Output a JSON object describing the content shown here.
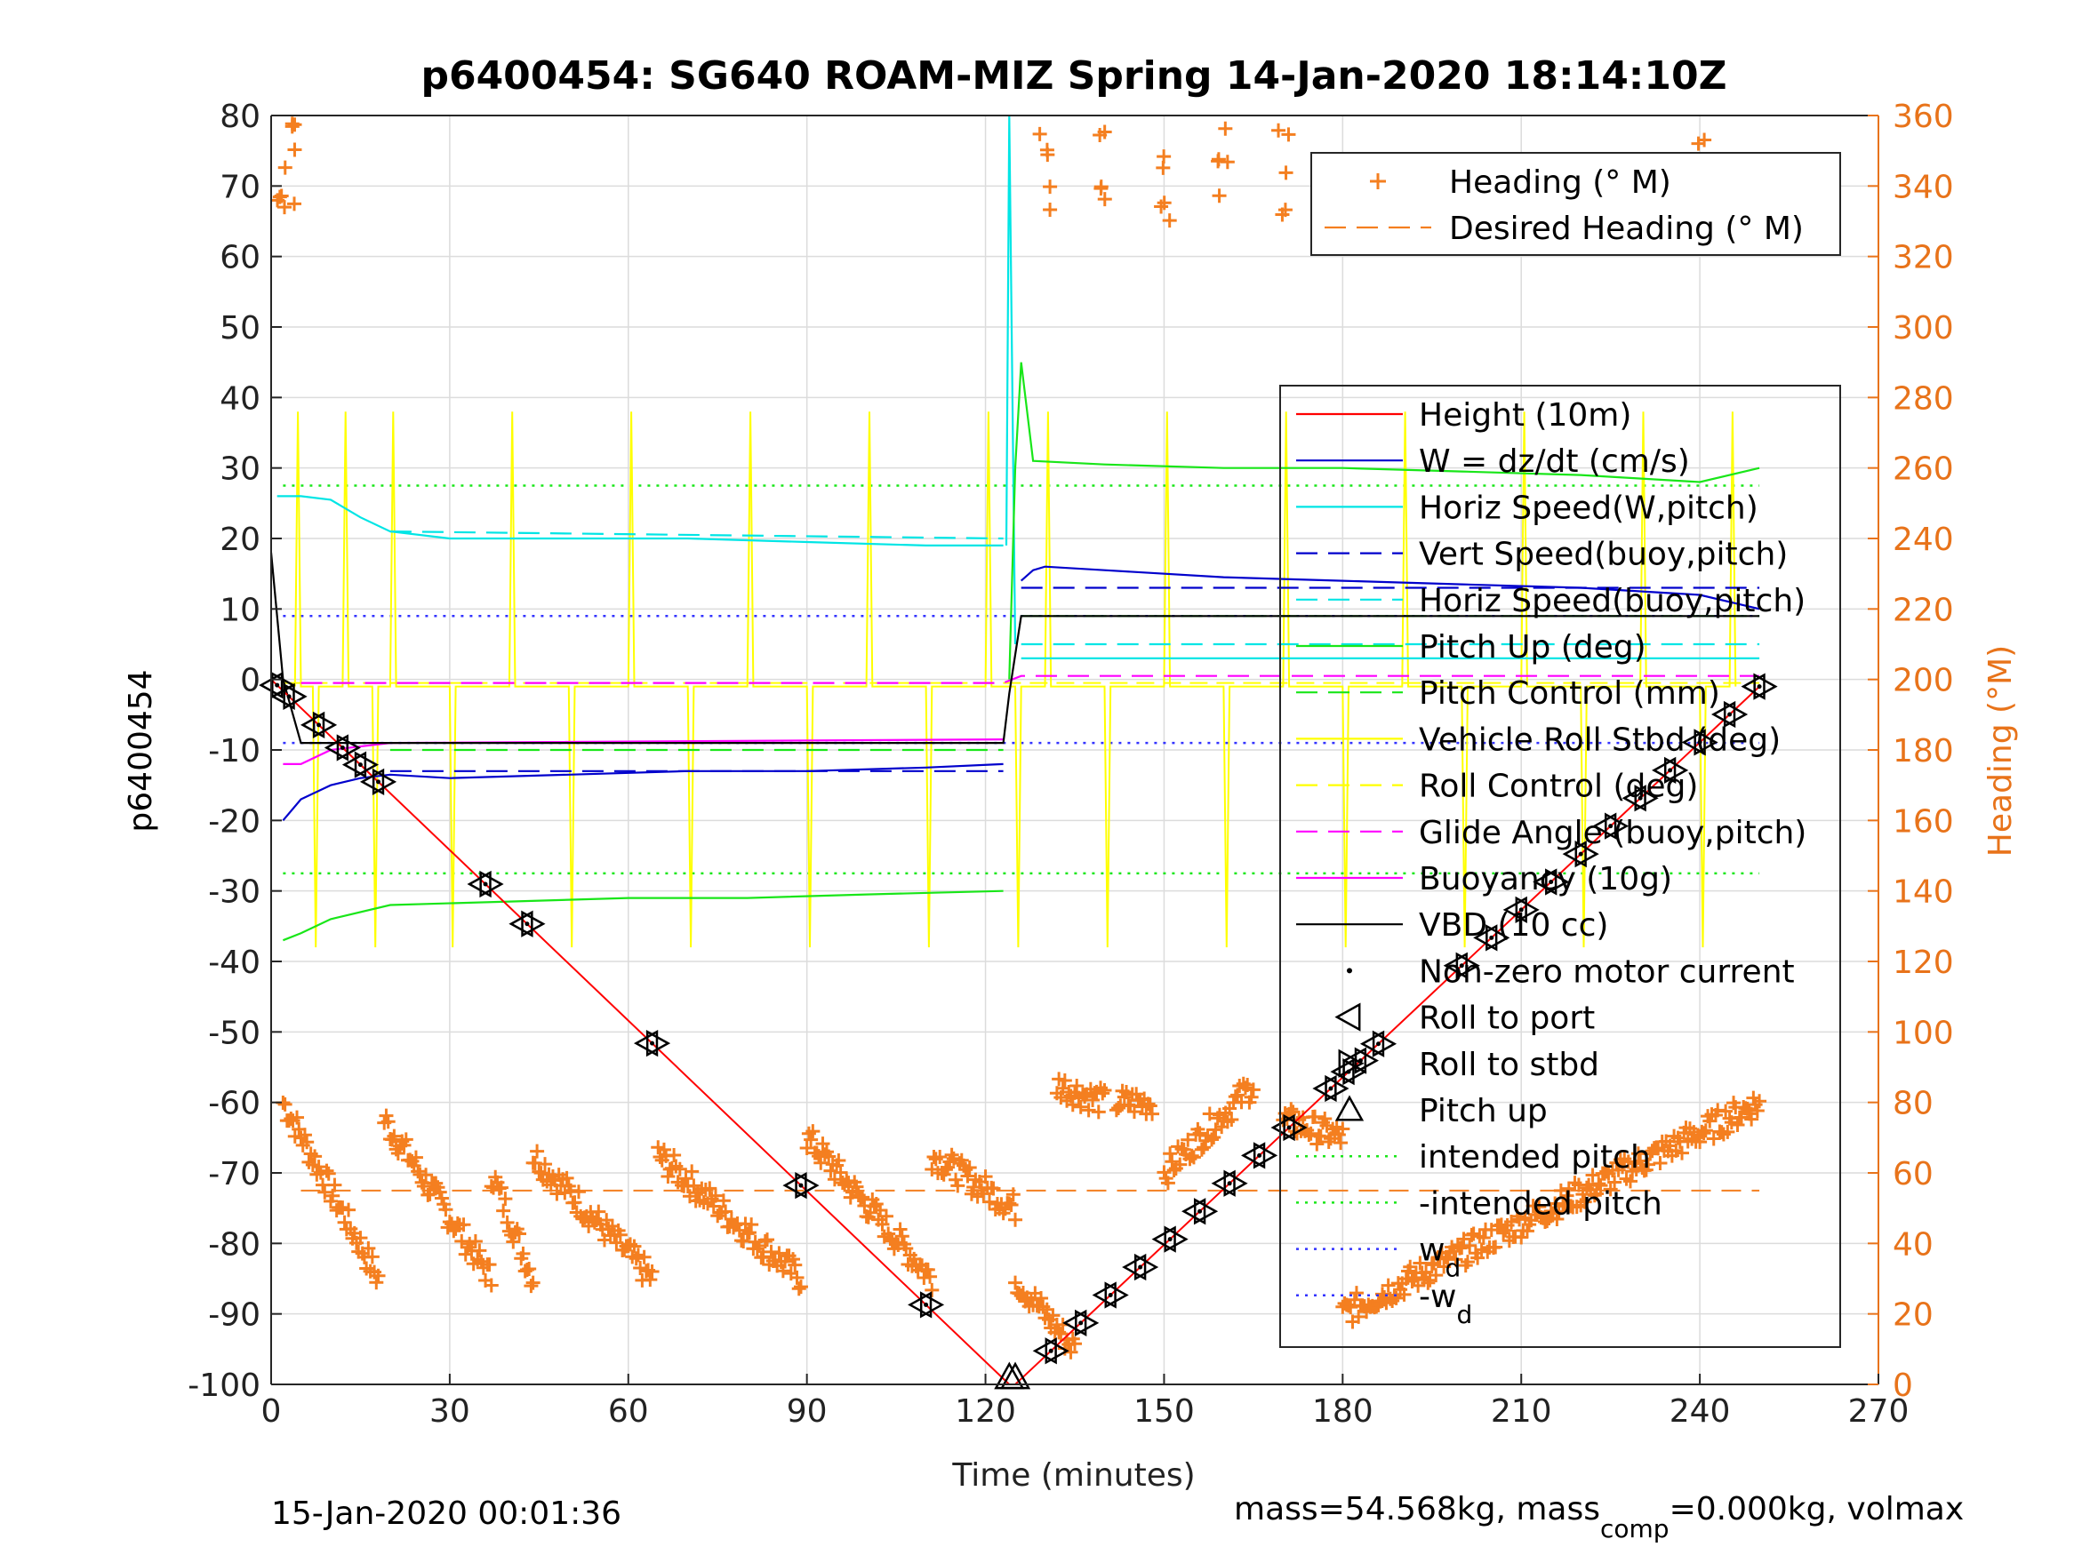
{
  "chart_data": {
    "type": "line",
    "title": "p6400454: SG640 ROAM-MIZ Spring 14-Jan-2020 18:14:10Z",
    "xlabel": "Time (minutes)",
    "ylabel_left": "p6400454",
    "ylabel_right": "Heading (°M)",
    "xlim": [
      0,
      270
    ],
    "ylim_left": [
      -100,
      80
    ],
    "ylim_right": [
      0,
      360
    ],
    "x_ticks": [
      "0",
      "30",
      "60",
      "90",
      "120",
      "150",
      "180",
      "210",
      "240",
      "270"
    ],
    "y_ticks_left": [
      "80",
      "70",
      "60",
      "50",
      "40",
      "30",
      "20",
      "10",
      "0",
      "-10",
      "-20",
      "-30",
      "-40",
      "-50",
      "-60",
      "-70",
      "-80",
      "-90",
      "-100"
    ],
    "y_ticks_right": [
      "360",
      "340",
      "320",
      "300",
      "280",
      "260",
      "240",
      "220",
      "200",
      "180",
      "160",
      "140",
      "120",
      "100",
      "80",
      "60",
      "40",
      "20",
      "0"
    ],
    "footer_left": "15-Jan-2020 00:01:36",
    "footer_right": {
      "prefix": "mass=54.568kg, mass",
      "sub": "comp",
      "suffix": "=0.000kg, volmax"
    },
    "colors": {
      "heading": "#f47f20",
      "height": "#ff0000",
      "w": "#0000cc",
      "horiz": "#00e5e5",
      "pitch": "#19e619",
      "roll": "#ffff00",
      "glide": "#ff00ff",
      "vbd": "#000000",
      "wd": "#3333ff",
      "axis_right": "#e8731a"
    },
    "legend_heading": [
      {
        "label": "Heading (° M)",
        "style": "plus",
        "color": "#f47f20"
      },
      {
        "label": "Desired Heading (° M)",
        "style": "dash",
        "color": "#f47f20"
      }
    ],
    "legend_main": [
      {
        "label": "Height (10m)",
        "style": "line",
        "color": "#ff0000"
      },
      {
        "label": "W = dz/dt (cm/s)",
        "style": "line",
        "color": "#0000cc"
      },
      {
        "label": "Horiz Speed(W,pitch)",
        "style": "line",
        "color": "#00e5e5"
      },
      {
        "label": "Vert Speed(buoy,pitch)",
        "style": "dash",
        "color": "#0000cc"
      },
      {
        "label": "Horiz Speed(buoy,pitch)",
        "style": "dash",
        "color": "#00e5e5"
      },
      {
        "label": "Pitch Up (deg)",
        "style": "line",
        "color": "#19e619"
      },
      {
        "label": "Pitch Control (mm)",
        "style": "dash",
        "color": "#19e619"
      },
      {
        "label": "Vehicle Roll Stbd (deg)",
        "style": "line",
        "color": "#ffff00"
      },
      {
        "label": "Roll Control (deg)",
        "style": "dash",
        "color": "#ffff00"
      },
      {
        "label": "Glide Angle (buoy,pitch)",
        "style": "dash",
        "color": "#ff00ff"
      },
      {
        "label": "Buoyancy (10g)",
        "style": "line",
        "color": "#ff00ff"
      },
      {
        "label": "VBD (10 cc)",
        "style": "line",
        "color": "#000000"
      },
      {
        "label": "Non-zero motor current",
        "style": "dot",
        "color": "#000000"
      },
      {
        "label": "Roll to port",
        "style": "tri-left",
        "color": "#000000"
      },
      {
        "label": "Roll to stbd",
        "style": "tri-right",
        "color": "#000000"
      },
      {
        "label": "Pitch up",
        "style": "tri-up",
        "color": "#000000"
      },
      {
        "label": "intended pitch",
        "style": "dotted",
        "color": "#19e619"
      },
      {
        "label": "-intended pitch",
        "style": "dotted",
        "color": "#19e619"
      },
      {
        "label": "w",
        "sub": "d",
        "style": "dotted",
        "color": "#3333ff"
      },
      {
        "label": "-w",
        "sub": "d",
        "style": "dotted",
        "color": "#3333ff"
      }
    ],
    "series": {
      "height": {
        "x": [
          0,
          124,
          125,
          250
        ],
        "y": [
          0,
          -100,
          -100,
          -1
        ]
      },
      "w": {
        "segments": [
          {
            "x": [
              2,
              5,
              10,
              15,
              20,
              30,
              50,
              70,
              90,
              110,
              123
            ],
            "y": [
              -20,
              -17,
              -15,
              -14,
              -13.5,
              -14,
              -13.5,
              -13,
              -13,
              -12.5,
              -12
            ]
          },
          {
            "x": [
              126,
              128,
              130,
              140,
              160,
              180,
              200,
              220,
              240,
              250
            ],
            "y": [
              14,
              15.5,
              16,
              15.5,
              14.5,
              14,
              13.5,
              13,
              12,
              10
            ]
          }
        ]
      },
      "horiz_speed_w": {
        "segments": [
          {
            "x": [
              1,
              5,
              10,
              15,
              20,
              30,
              50,
              70,
              90,
              110,
              123
            ],
            "y": [
              26,
              26,
              25.5,
              23,
              21,
              20,
              20,
              20,
              19.5,
              19,
              19
            ]
          },
          {
            "x": [
              123.5,
              124,
              125
            ],
            "y": [
              19,
              80,
              5
            ]
          },
          {
            "x": [
              126,
              150,
              200,
              250
            ],
            "y": [
              3,
              3,
              3,
              3
            ]
          }
        ]
      },
      "vert_speed_buoy": {
        "segments": [
          {
            "x": [
              20,
              123
            ],
            "y": [
              -13,
              -13
            ]
          },
          {
            "x": [
              126,
              250
            ],
            "y": [
              13,
              13
            ]
          }
        ]
      },
      "horiz_speed_buoy": {
        "segments": [
          {
            "x": [
              20,
              123
            ],
            "y": [
              21,
              20
            ]
          },
          {
            "x": [
              126,
              250
            ],
            "y": [
              5,
              5
            ]
          }
        ]
      },
      "pitch_up": {
        "segments": [
          {
            "x": [
              2,
              5,
              10,
              20,
              40,
              60,
              80,
              100,
              123
            ],
            "y": [
              -37,
              -36,
              -34,
              -32,
              -31.5,
              -31,
              -31,
              -30.5,
              -30
            ]
          },
          {
            "x": [
              124,
              125,
              126,
              128,
              140,
              160,
              180,
              200,
              220,
              240,
              250
            ],
            "y": [
              0,
              30,
              45,
              31,
              30.5,
              30,
              30,
              29.5,
              29,
              28,
              30
            ]
          }
        ]
      },
      "pitch_control": {
        "segments": [
          {
            "x": [
              20,
              123
            ],
            "y": [
              -10,
              -10
            ]
          },
          {
            "x": [
              126,
              250
            ],
            "y": [
              9,
              9
            ]
          }
        ]
      },
      "roll_spikes_x": [
        4,
        7,
        12,
        17,
        20,
        30,
        40,
        50,
        60,
        70,
        80,
        90,
        100,
        110,
        120,
        125,
        130,
        140,
        150,
        160,
        170,
        180,
        190,
        200,
        210,
        220,
        230,
        240,
        245
      ],
      "roll_base": -1,
      "glide_angle": {
        "x": [
          5,
          123,
          126,
          250
        ],
        "y": [
          -0.5,
          -0.5,
          0.5,
          0.5
        ]
      },
      "buoyancy": {
        "x": [
          2,
          5,
          10,
          20,
          123
        ],
        "y": [
          -12,
          -12,
          -10,
          -9,
          -8.5
        ]
      },
      "vbd": {
        "x": [
          0,
          2,
          5,
          20,
          123,
          124,
          126,
          250
        ],
        "y": [
          18,
          0,
          -9,
          -9,
          -9,
          -2,
          9,
          9
        ]
      },
      "intended_pitch": 27.5,
      "neg_intended_pitch": -27.5,
      "wd": 9,
      "neg_wd": -9,
      "desired_heading": 55,
      "heading_runs": [
        {
          "x0": 2,
          "x1": 18,
          "h0": 80,
          "h1": 30
        },
        {
          "x0": 19,
          "x1": 37,
          "h0": 75,
          "h1": 30
        },
        {
          "x0": 37,
          "x1": 44,
          "h0": 60,
          "h1": 30
        },
        {
          "x0": 44,
          "x1": 64,
          "h0": 65,
          "h1": 30
        },
        {
          "x0": 65,
          "x1": 89,
          "h0": 65,
          "h1": 30
        },
        {
          "x0": 90,
          "x1": 111,
          "h0": 70,
          "h1": 30
        },
        {
          "x0": 111,
          "x1": 125,
          "h0": 65,
          "h1": 50
        },
        {
          "x0": 125,
          "x1": 135,
          "h0": 30,
          "h1": 10
        },
        {
          "x0": 132,
          "x1": 140,
          "h0": 85,
          "h1": 80
        },
        {
          "x0": 142,
          "x1": 148,
          "h0": 80,
          "h1": 80
        },
        {
          "x0": 150,
          "x1": 165,
          "h0": 60,
          "h1": 85
        },
        {
          "x0": 170,
          "x1": 180,
          "h0": 75,
          "h1": 70
        },
        {
          "x0": 180,
          "x1": 250,
          "h0": 20,
          "h1": 80
        }
      ],
      "heading_high_x": [
        2,
        4,
        130,
        140,
        150,
        160,
        170,
        240
      ],
      "markers": {
        "descent_x": [
          1,
          3,
          8,
          12,
          15,
          18,
          36,
          43,
          64,
          89,
          110
        ],
        "bottom_x": [
          124,
          125
        ],
        "ascent_x": [
          131,
          136,
          141,
          146,
          151,
          156,
          161,
          166,
          171,
          178,
          181,
          183,
          186,
          200,
          205,
          210,
          215,
          220,
          225,
          230,
          235,
          240,
          245,
          250
        ]
      }
    }
  }
}
